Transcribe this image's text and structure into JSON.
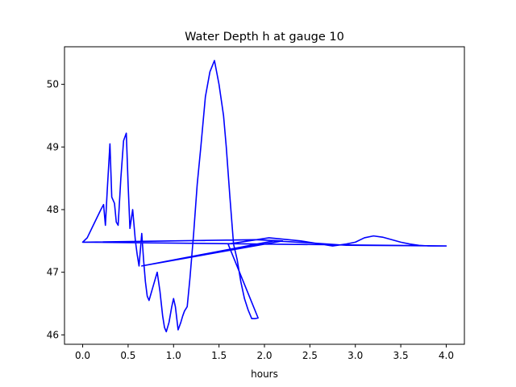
{
  "chart_data": {
    "type": "line",
    "title": "Water Depth h at gauge 10",
    "xlabel": "hours",
    "ylabel": "",
    "xlim": [
      -0.2,
      4.2
    ],
    "ylim": [
      45.85,
      50.6
    ],
    "x_ticks": [
      0.0,
      0.5,
      1.0,
      1.5,
      2.0,
      2.5,
      3.0,
      3.5,
      4.0
    ],
    "x_tick_labels": [
      "0.0",
      "0.5",
      "1.0",
      "1.5",
      "2.0",
      "2.5",
      "3.0",
      "3.5",
      "4.0"
    ],
    "y_ticks": [
      46,
      47,
      48,
      49,
      50
    ],
    "y_tick_labels": [
      "46",
      "47",
      "48",
      "49",
      "50"
    ],
    "grid": false,
    "legend": false,
    "series": [
      {
        "color": "#0000ff",
        "x": [
          0.0,
          0.05,
          0.1,
          0.15,
          0.2,
          0.23,
          0.25,
          0.27,
          0.3,
          0.32,
          0.35,
          0.37,
          0.39,
          0.42,
          0.45,
          0.48,
          0.5,
          0.52,
          0.55,
          0.58,
          0.6,
          0.62,
          0.65,
          0.67,
          0.69,
          0.71,
          0.73,
          0.75,
          0.78,
          0.82,
          0.85,
          0.88,
          0.9,
          0.92,
          0.95,
          0.98,
          1.0,
          1.02,
          1.05,
          1.08,
          1.1,
          1.12,
          1.15,
          1.18,
          1.22,
          1.26,
          1.3,
          1.35,
          1.4,
          1.45,
          1.5,
          1.53,
          1.55,
          1.58,
          1.62,
          1.66,
          1.7,
          1.74,
          1.78,
          1.82,
          1.86,
          1.9,
          1.93,
          1.6,
          2.05,
          2.4,
          2.75,
          2.9,
          3.0,
          3.1,
          3.2,
          3.3,
          3.4,
          3.5,
          3.6,
          3.7,
          3.8,
          3.9,
          4.0,
          0.0,
          1.9,
          2.2,
          0.65,
          2.1,
          2.5,
          2.9,
          4.0
        ],
        "y": [
          47.48,
          47.55,
          47.7,
          47.85,
          48.0,
          48.08,
          47.75,
          48.3,
          49.05,
          48.2,
          48.1,
          47.8,
          47.75,
          48.5,
          49.1,
          49.22,
          48.4,
          47.7,
          48.0,
          47.5,
          47.28,
          47.1,
          47.62,
          47.2,
          46.85,
          46.62,
          46.55,
          46.65,
          46.8,
          47.0,
          46.7,
          46.3,
          46.12,
          46.05,
          46.2,
          46.45,
          46.58,
          46.45,
          46.08,
          46.2,
          46.3,
          46.38,
          46.45,
          46.9,
          47.6,
          48.4,
          49.0,
          49.8,
          50.2,
          50.38,
          50.0,
          49.7,
          49.5,
          49.0,
          48.2,
          47.45,
          47.2,
          46.85,
          46.58,
          46.4,
          46.26,
          46.26,
          46.27,
          47.45,
          47.55,
          47.5,
          47.42,
          47.45,
          47.48,
          47.55,
          47.58,
          47.56,
          47.52,
          47.48,
          47.45,
          47.43,
          47.42,
          47.42,
          47.42,
          47.48,
          47.52,
          47.5,
          47.1,
          47.5,
          47.47,
          47.43,
          47.42
        ]
      }
    ]
  }
}
